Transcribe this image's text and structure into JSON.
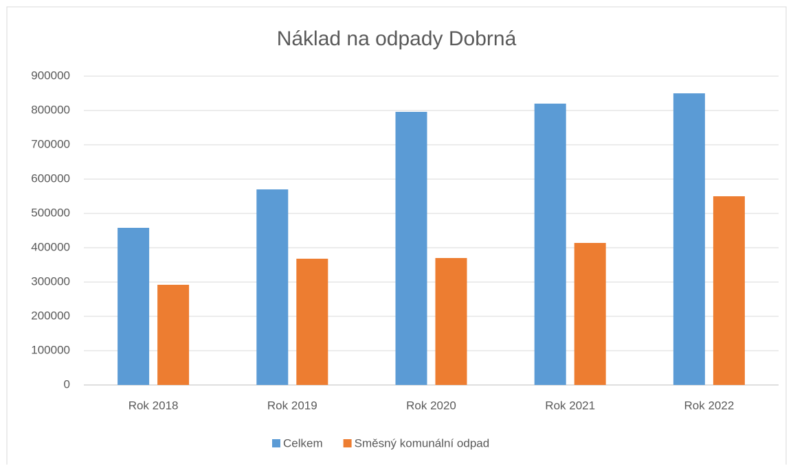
{
  "chart_data": {
    "type": "bar",
    "title": "Náklad na odpady Dobrná",
    "categories": [
      "Rok 2018",
      "Rok 2019",
      "Rok 2020",
      "Rok 2021",
      "Rok 2022"
    ],
    "series": [
      {
        "name": "Celkem",
        "color": "#5b9bd5",
        "values": [
          458000,
          570000,
          796000,
          820000,
          850000
        ]
      },
      {
        "name": "Směsný komunální odpad",
        "color": "#ed7d31",
        "values": [
          292000,
          368000,
          370000,
          414000,
          550000
        ]
      }
    ],
    "ylim": [
      0,
      900000
    ],
    "yticks": [
      0,
      100000,
      200000,
      300000,
      400000,
      500000,
      600000,
      700000,
      800000,
      900000
    ],
    "grid": true,
    "legend": "bottom"
  }
}
